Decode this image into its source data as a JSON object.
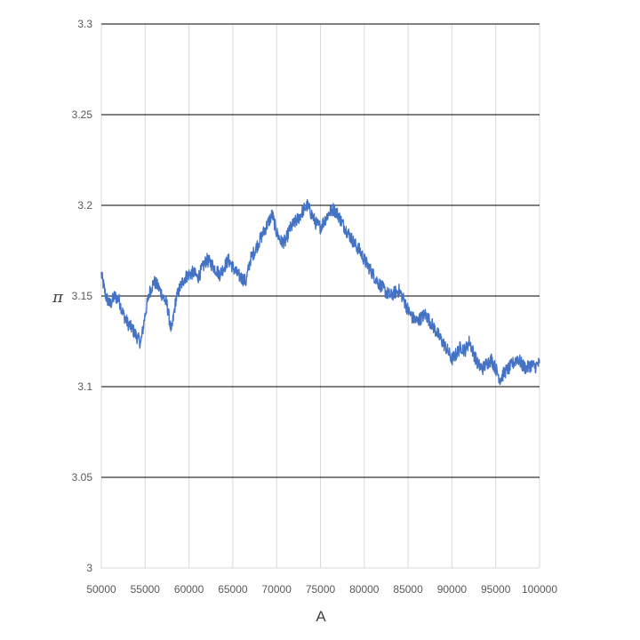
{
  "chart_data": {
    "type": "line",
    "title": "",
    "xlabel": "A",
    "ylabel": "π",
    "xlim": [
      50000,
      100000
    ],
    "ylim": [
      3,
      3.3
    ],
    "x_ticks": [
      50000,
      55000,
      60000,
      65000,
      70000,
      75000,
      80000,
      85000,
      90000,
      95000,
      100000
    ],
    "x_tick_labels": [
      "50000",
      "55000",
      "60000",
      "65000",
      "70000",
      "75000",
      "80000",
      "85000",
      "90000",
      "95000",
      "100000"
    ],
    "y_ticks": [
      3,
      3.05,
      3.1,
      3.15,
      3.2,
      3.25,
      3.3
    ],
    "y_tick_labels": [
      "3",
      "3.05",
      "3.1",
      "3.15",
      "3.2",
      "3.25",
      "3.3"
    ],
    "horizontal_grid": true,
    "vertical_grid": true,
    "legend": "none",
    "colors": {
      "series": "#4472c4",
      "major_grid": "#000000",
      "minor_grid": "#d9d9d9",
      "tick_text": "#595959"
    },
    "series": [
      {
        "x": [
          50000,
          50500,
          51000,
          51500,
          52000,
          52500,
          53000,
          53500,
          54000,
          54500,
          55000,
          55500,
          56000,
          56500,
          57000,
          57500,
          58000,
          58500,
          59000,
          59500,
          60000,
          60500,
          61000,
          61500,
          62000,
          62500,
          63000,
          63500,
          64000,
          64500,
          65000,
          65500,
          66000,
          66500,
          67000,
          67500,
          68000,
          68500,
          69000,
          69500,
          70000,
          70500,
          71000,
          71500,
          72000,
          72500,
          73000,
          73500,
          74000,
          74500,
          75000,
          75500,
          76000,
          76500,
          77000,
          77500,
          78000,
          78500,
          79000,
          79500,
          80000,
          80500,
          81000,
          81500,
          82000,
          82500,
          83000,
          83500,
          84000,
          84500,
          85000,
          85500,
          86000,
          86500,
          87000,
          87500,
          88000,
          88500,
          89000,
          89500,
          90000,
          90500,
          91000,
          91500,
          92000,
          92500,
          93000,
          93500,
          94000,
          94500,
          95000,
          95500,
          96000,
          96500,
          97000,
          97500,
          98000,
          98500,
          99000,
          99500,
          100000
        ],
        "values": [
          3.162,
          3.15,
          3.145,
          3.15,
          3.148,
          3.14,
          3.135,
          3.132,
          3.128,
          3.124,
          3.14,
          3.152,
          3.158,
          3.155,
          3.15,
          3.145,
          3.13,
          3.148,
          3.155,
          3.16,
          3.162,
          3.163,
          3.16,
          3.165,
          3.17,
          3.168,
          3.165,
          3.162,
          3.166,
          3.17,
          3.166,
          3.162,
          3.16,
          3.158,
          3.17,
          3.175,
          3.18,
          3.185,
          3.19,
          3.195,
          3.185,
          3.18,
          3.18,
          3.187,
          3.19,
          3.193,
          3.197,
          3.2,
          3.195,
          3.19,
          3.188,
          3.192,
          3.196,
          3.198,
          3.195,
          3.19,
          3.186,
          3.182,
          3.178,
          3.175,
          3.17,
          3.166,
          3.162,
          3.158,
          3.155,
          3.152,
          3.15,
          3.152,
          3.153,
          3.148,
          3.142,
          3.138,
          3.136,
          3.138,
          3.14,
          3.136,
          3.132,
          3.128,
          3.124,
          3.12,
          3.115,
          3.118,
          3.122,
          3.12,
          3.125,
          3.118,
          3.112,
          3.11,
          3.113,
          3.115,
          3.11,
          3.104,
          3.108,
          3.11,
          3.113,
          3.116,
          3.112,
          3.11,
          3.112,
          3.111,
          3.113
        ]
      }
    ]
  }
}
